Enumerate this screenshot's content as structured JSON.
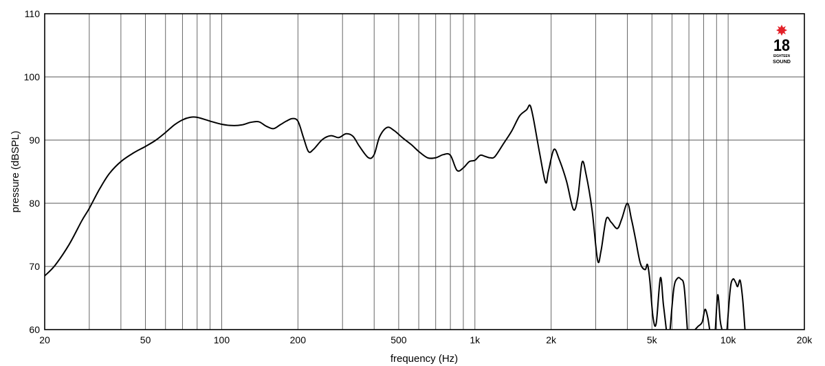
{
  "chart_data": {
    "type": "line",
    "title": "",
    "xlabel": "frequency (Hz)",
    "ylabel": "pressure (dBSPL)",
    "xscale": "log",
    "xlim": [
      20,
      20000
    ],
    "ylim": [
      60,
      110
    ],
    "grid": true,
    "x_ticks": [
      {
        "value": 20,
        "label": "20"
      },
      {
        "value": 50,
        "label": "50"
      },
      {
        "value": 100,
        "label": "100"
      },
      {
        "value": 200,
        "label": "200"
      },
      {
        "value": 500,
        "label": "500"
      },
      {
        "value": 1000,
        "label": "1k"
      },
      {
        "value": 2000,
        "label": "2k"
      },
      {
        "value": 5000,
        "label": "5k"
      },
      {
        "value": 10000,
        "label": "10k"
      },
      {
        "value": 20000,
        "label": "20k"
      }
    ],
    "x_gridlines": [
      30,
      40,
      50,
      60,
      70,
      80,
      90,
      100,
      200,
      300,
      400,
      500,
      600,
      700,
      800,
      900,
      1000,
      2000,
      3000,
      4000,
      5000,
      6000,
      7000,
      8000,
      9000,
      10000
    ],
    "y_ticks": [
      {
        "value": 60,
        "label": "60"
      },
      {
        "value": 70,
        "label": "70"
      },
      {
        "value": 80,
        "label": "80"
      },
      {
        "value": 90,
        "label": "90"
      },
      {
        "value": 100,
        "label": "100"
      },
      {
        "value": 110,
        "label": "110"
      }
    ],
    "series": [
      {
        "segments": [
          [
            [
              20,
              68.5
            ],
            [
              22,
              70.2
            ],
            [
              25,
              73.5
            ],
            [
              28,
              77.2
            ],
            [
              30,
              79.2
            ],
            [
              33,
              82.3
            ],
            [
              36,
              84.7
            ],
            [
              40,
              86.6
            ],
            [
              45,
              88.0
            ],
            [
              50,
              89.0
            ],
            [
              55,
              90.0
            ],
            [
              60,
              91.2
            ],
            [
              65,
              92.4
            ],
            [
              70,
              93.2
            ],
            [
              75,
              93.6
            ],
            [
              80,
              93.6
            ],
            [
              90,
              93.0
            ],
            [
              100,
              92.5
            ],
            [
              110,
              92.3
            ],
            [
              120,
              92.4
            ],
            [
              130,
              92.8
            ],
            [
              140,
              92.9
            ],
            [
              150,
              92.2
            ],
            [
              160,
              91.8
            ],
            [
              170,
              92.4
            ],
            [
              180,
              93.0
            ],
            [
              190,
              93.4
            ],
            [
              200,
              93.0
            ],
            [
              210,
              90.5
            ],
            [
              220,
              88.2
            ],
            [
              230,
              88.5
            ],
            [
              250,
              90.1
            ],
            [
              270,
              90.7
            ],
            [
              290,
              90.4
            ],
            [
              310,
              91.0
            ],
            [
              330,
              90.6
            ],
            [
              350,
              89.0
            ],
            [
              380,
              87.2
            ],
            [
              400,
              87.7
            ],
            [
              420,
              90.5
            ],
            [
              450,
              92.0
            ],
            [
              480,
              91.5
            ],
            [
              520,
              90.3
            ],
            [
              560,
              89.3
            ],
            [
              600,
              88.2
            ],
            [
              650,
              87.2
            ],
            [
              700,
              87.2
            ],
            [
              750,
              87.7
            ],
            [
              800,
              87.6
            ],
            [
              850,
              85.2
            ],
            [
              900,
              85.6
            ],
            [
              950,
              86.6
            ],
            [
              1000,
              86.8
            ],
            [
              1050,
              87.6
            ],
            [
              1100,
              87.4
            ],
            [
              1150,
              87.2
            ],
            [
              1200,
              87.4
            ],
            [
              1300,
              89.5
            ],
            [
              1400,
              91.5
            ],
            [
              1500,
              93.8
            ],
            [
              1600,
              94.8
            ],
            [
              1650,
              95.5
            ],
            [
              1700,
              93.5
            ],
            [
              1800,
              88.0
            ],
            [
              1900,
              83.3
            ],
            [
              1950,
              85.0
            ],
            [
              2050,
              88.5
            ],
            [
              2150,
              87.0
            ],
            [
              2300,
              83.5
            ],
            [
              2450,
              79.0
            ],
            [
              2550,
              81.0
            ],
            [
              2650,
              86.5
            ],
            [
              2750,
              84.5
            ],
            [
              2900,
              79.0
            ],
            [
              3050,
              71.0
            ],
            [
              3150,
              72.5
            ],
            [
              3300,
              77.5
            ],
            [
              3450,
              77.0
            ],
            [
              3650,
              76.0
            ],
            [
              3800,
              77.5
            ],
            [
              4000,
              80.0
            ],
            [
              4150,
              77.5
            ],
            [
              4300,
              74.5
            ],
            [
              4500,
              70.5
            ],
            [
              4700,
              69.5
            ],
            [
              4800,
              70.3
            ],
            [
              4900,
              68.0
            ],
            [
              5050,
              62.0
            ],
            [
              5200,
              61.0
            ],
            [
              5400,
              68.2
            ],
            [
              5550,
              64.0
            ],
            [
              5700,
              60.0
            ]
          ],
          [
            [
              5900,
              60.0
            ],
            [
              6100,
              66.5
            ],
            [
              6300,
              68.1
            ],
            [
              6500,
              68.0
            ],
            [
              6700,
              66.8
            ],
            [
              6900,
              60.0
            ]
          ],
          [
            [
              7400,
              60.0
            ],
            [
              7600,
              60.5
            ],
            [
              7900,
              61.2
            ],
            [
              8100,
              63.2
            ],
            [
              8300,
              62.0
            ],
            [
              8450,
              60.0
            ]
          ],
          [
            [
              8900,
              60.0
            ],
            [
              9100,
              65.5
            ],
            [
              9300,
              61.5
            ],
            [
              9450,
              60.0
            ]
          ],
          [
            [
              9900,
              60.0
            ],
            [
              10200,
              66.5
            ],
            [
              10450,
              68.0
            ],
            [
              10700,
              67.5
            ],
            [
              10900,
              66.8
            ],
            [
              11150,
              67.8
            ],
            [
              11400,
              65.0
            ],
            [
              11650,
              60.0
            ]
          ]
        ]
      }
    ]
  },
  "logo": {
    "number": "18",
    "line1": "EIGHTEEN",
    "line2": "SOUND",
    "star_color": "#e32129"
  }
}
